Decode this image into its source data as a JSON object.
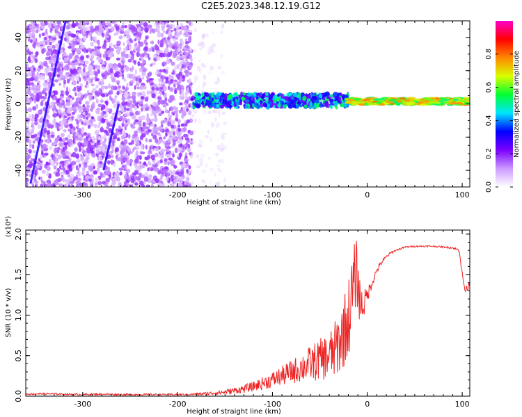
{
  "title": "C2E5.2023.348.12.19.G12",
  "chart_data": [
    {
      "type": "heatmap",
      "title": "C2E5.2023.348.12.19.G12",
      "xlabel": "Height of straight line (km)",
      "ylabel": "Frequency (Hz)",
      "xlim": [
        -360,
        108
      ],
      "ylim": [
        -50,
        50
      ],
      "x_ticks": [
        -300,
        -200,
        -100,
        0,
        100
      ],
      "y_ticks": [
        -40,
        -20,
        0,
        20,
        40
      ],
      "x_tick_labels": [
        "-300",
        "-200",
        "-100",
        "0",
        "100"
      ],
      "y_tick_labels": [
        "-40",
        "-20",
        "0",
        "20",
        "40"
      ],
      "colorbar": {
        "label": "Normalized spectral amplitude",
        "range": [
          0,
          1
        ],
        "ticks": [
          0.0,
          0.2,
          0.4,
          0.6,
          0.8
        ],
        "tick_labels": [
          "0.0",
          "0.2",
          "0.4",
          "0.6",
          "0.8"
        ],
        "colors": [
          "#ffffff",
          "#cc99ff",
          "#7b00ff",
          "#0000ff",
          "#00e5ff",
          "#00ff33",
          "#d9ff00",
          "#ff8800",
          "#ff0000",
          "#ff00cc"
        ]
      },
      "regions": [
        {
          "x_range": [
            -360,
            -185
          ],
          "freq_range": [
            -50,
            50
          ],
          "level_range": [
            0.05,
            0.2
          ],
          "pattern": "noise"
        },
        {
          "x_range": [
            -185,
            -150
          ],
          "freq_range": [
            -50,
            50
          ],
          "level_range": [
            0.02,
            0.06
          ],
          "pattern": "sparse"
        },
        {
          "x_range": [
            -185,
            -20
          ],
          "freq_center": 2,
          "freq_halfwidth": 4,
          "level_range": [
            0.2,
            0.55
          ],
          "pattern": "band"
        },
        {
          "x_range": [
            -20,
            108
          ],
          "freq_center": 1.5,
          "freq_halfwidth": 2,
          "level_range": [
            0.5,
            0.8
          ],
          "pattern": "narrow-band"
        }
      ],
      "diagonal_streaks": [
        {
          "x": [
            -355,
            -318
          ],
          "freq": [
            -48,
            50
          ]
        },
        {
          "x": [
            -278,
            -262
          ],
          "freq": [
            -40,
            0
          ]
        }
      ]
    },
    {
      "type": "line",
      "xlabel": "Height of straight line (km)",
      "ylabel": "SNR (10 * v/v)",
      "y_multiplier_label": "(x10⁴)",
      "xlim": [
        -360,
        108
      ],
      "ylim": [
        0,
        2.05
      ],
      "x_ticks": [
        -300,
        -200,
        -100,
        0,
        100
      ],
      "y_ticks": [
        0.0,
        0.5,
        1.0,
        1.5,
        2.0
      ],
      "x_tick_labels": [
        "-300",
        "-200",
        "-100",
        "0",
        "100"
      ],
      "y_tick_labels": [
        "0.0",
        "0.5",
        "1.0",
        "1.5",
        "2.0"
      ],
      "color": "#ee2222",
      "series": [
        {
          "x": [
            -360,
            -340,
            -320,
            -300,
            -280,
            -260,
            -240,
            -220,
            -200,
            -190,
            -180,
            -170,
            -160,
            -150,
            -140,
            -130,
            -120,
            -110,
            -100,
            -90,
            -80,
            -70,
            -60,
            -50,
            -40,
            -35,
            -30,
            -25,
            -20,
            -18,
            -15,
            -12,
            -10,
            -8,
            -5,
            0,
            5,
            10,
            15,
            20,
            25,
            30,
            35,
            40,
            50,
            60,
            70,
            80,
            90,
            97,
            100,
            103,
            106,
            108
          ],
          "values": [
            0.025,
            0.03,
            0.025,
            0.02,
            0.025,
            0.02,
            0.02,
            0.02,
            0.02,
            0.02,
            0.025,
            0.03,
            0.04,
            0.05,
            0.07,
            0.09,
            0.12,
            0.16,
            0.2,
            0.25,
            0.3,
            0.35,
            0.4,
            0.45,
            0.5,
            0.55,
            0.65,
            0.8,
            0.95,
            1.1,
            1.3,
            1.55,
            1.4,
            1.2,
            1.1,
            1.25,
            1.4,
            1.55,
            1.65,
            1.72,
            1.77,
            1.8,
            1.82,
            1.84,
            1.85,
            1.85,
            1.85,
            1.84,
            1.83,
            1.8,
            1.5,
            1.3,
            1.35,
            1.4
          ],
          "noise_amplitude": [
            0.01,
            0.01,
            0.01,
            0.01,
            0.01,
            0.01,
            0.01,
            0.01,
            0.01,
            0.01,
            0.015,
            0.02,
            0.025,
            0.03,
            0.04,
            0.05,
            0.06,
            0.08,
            0.1,
            0.12,
            0.15,
            0.18,
            0.22,
            0.26,
            0.3,
            0.35,
            0.4,
            0.45,
            0.5,
            0.5,
            0.5,
            0.45,
            0.35,
            0.3,
            0.2,
            0.1,
            0.06,
            0.04,
            0.03,
            0.02,
            0.015,
            0.01,
            0.01,
            0.01,
            0.01,
            0.01,
            0.01,
            0.01,
            0.01,
            0.02,
            0.04,
            0.04,
            0.04,
            0.03
          ]
        }
      ]
    }
  ]
}
